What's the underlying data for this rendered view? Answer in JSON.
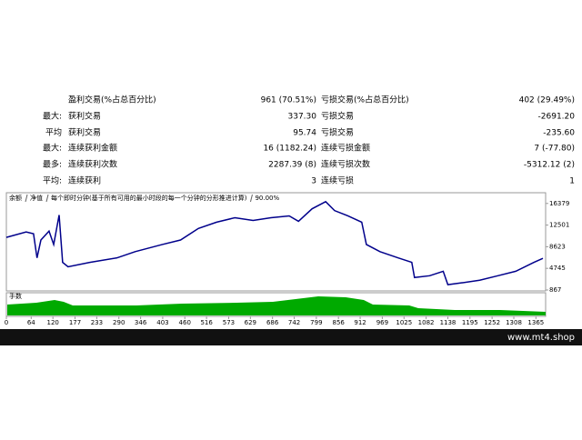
{
  "stats": {
    "rows": [
      {
        "label": "盈利交易(%占总百分比)",
        "value": "961 (70.51%)",
        "label2": "亏损交易(%占总百分比)",
        "value2": "402 (29.49%)"
      },
      {
        "prefix": "最大:",
        "label": "获利交易",
        "value": "337.30",
        "label2": "亏损交易",
        "value2": "-2691.20"
      },
      {
        "prefix": "平均",
        "label": "获利交易",
        "value": "95.74",
        "label2": "亏损交易",
        "value2": "-235.60"
      },
      {
        "prefix": "最大:",
        "label": "连续获利金额",
        "value": "16 (1182.24)",
        "label2": "连续亏损金额",
        "value2": "7 (-77.80)"
      },
      {
        "prefix": "最多:",
        "label": "连续获利次数",
        "value": "2287.39 (8)",
        "label2": "连续亏损次数",
        "value2": "-5312.12 (2)"
      },
      {
        "prefix": "平均:",
        "label": "连续获利",
        "value": "3",
        "label2": "连续亏损",
        "value2": "1"
      }
    ]
  },
  "chart_data": {
    "type": "line",
    "legend": [
      "余额",
      "净值",
      "每个即时分钟(基于所有可用的最小时段的每一个分钟的分形推进计算)",
      "90.00%"
    ],
    "volume_label": "手数",
    "x": [
      0,
      51,
      70,
      79,
      89,
      110,
      122,
      136,
      145,
      159,
      215,
      285,
      332,
      402,
      449,
      495,
      542,
      589,
      636,
      682,
      729,
      753,
      788,
      823,
      846,
      881,
      916,
      928,
      963,
      1010,
      1045,
      1052,
      1091,
      1126,
      1138,
      1173,
      1220,
      1267,
      1313,
      1360,
      1383
    ],
    "series": [
      {
        "name": "余额",
        "color": "#00008b",
        "values": [
          10300,
          11260,
          10940,
          6620,
          9820,
          11420,
          9020,
          14300,
          5820,
          5020,
          5820,
          6620,
          7740,
          9020,
          9820,
          11900,
          13020,
          13820,
          13340,
          13820,
          14140,
          13180,
          15420,
          16700,
          15100,
          14140,
          13020,
          9020,
          7740,
          6620,
          5820,
          3100,
          3420,
          4220,
          1820,
          2140,
          2620,
          3420,
          4220,
          5820,
          6540
        ]
      }
    ],
    "xlim": [
      0,
      1390
    ],
    "ylim": [
      700,
      18300
    ],
    "yticks": [
      16379,
      12501,
      8623,
      4745,
      867
    ],
    "xticks": [
      0,
      64,
      120,
      177,
      233,
      290,
      346,
      403,
      460,
      516,
      573,
      629,
      686,
      742,
      799,
      856,
      912,
      969,
      1025,
      1082,
      1138,
      1195,
      1252,
      1308,
      1365
    ]
  },
  "footer": "www.mt4.shop"
}
